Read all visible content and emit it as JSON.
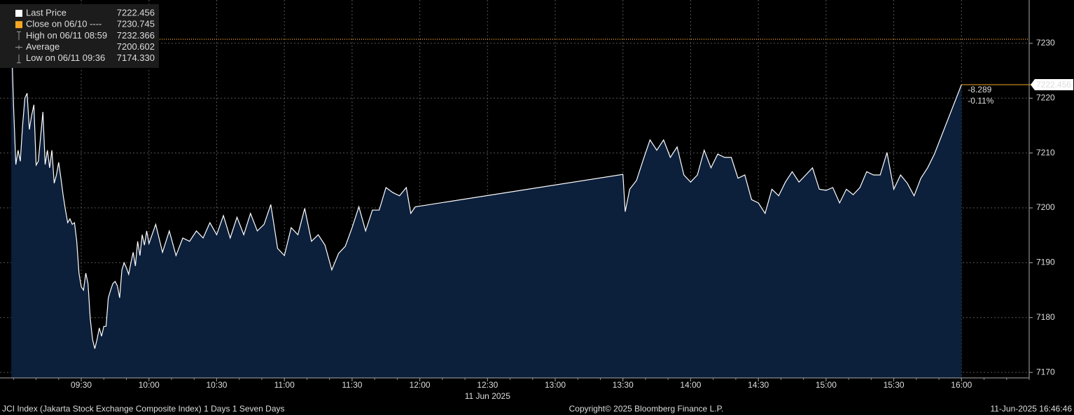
{
  "chart_data": {
    "type": "area",
    "xlim": [
      "08:54",
      "16:30"
    ],
    "xticks": [
      "09:30",
      "10:00",
      "10:30",
      "11:00",
      "11:30",
      "12:00",
      "12:30",
      "13:00",
      "13:30",
      "14:00",
      "14:30",
      "15:00",
      "15:30",
      "16:00"
    ],
    "date_label": "11 Jun 2025",
    "ylim": [
      7169,
      7237.9
    ],
    "yticks": [
      7170,
      7180,
      7190,
      7200,
      7210,
      7220,
      7230
    ],
    "grid": true,
    "x": [
      "08:59",
      "09:00",
      "09:01",
      "09:02",
      "09:03",
      "09:04",
      "09:05",
      "09:06",
      "09:07",
      "09:08",
      "09:09",
      "09:10",
      "09:11",
      "09:12",
      "09:13",
      "09:14",
      "09:15",
      "09:16",
      "09:17",
      "09:18",
      "09:19",
      "09:20",
      "09:21",
      "09:22",
      "09:23",
      "09:24",
      "09:25",
      "09:26",
      "09:27",
      "09:28",
      "09:29",
      "09:30",
      "09:31",
      "09:32",
      "09:33",
      "09:34",
      "09:35",
      "09:36",
      "09:37",
      "09:38",
      "09:39",
      "09:40",
      "09:41",
      "09:42",
      "09:43",
      "09:44",
      "09:45",
      "09:46",
      "09:47",
      "09:48",
      "09:49",
      "09:50",
      "09:51",
      "09:52",
      "09:53",
      "09:54",
      "09:55",
      "09:56",
      "09:57",
      "09:58",
      "09:59",
      "10:00",
      "10:03",
      "10:06",
      "10:09",
      "10:12",
      "10:15",
      "10:18",
      "10:21",
      "10:24",
      "10:27",
      "10:30",
      "10:33",
      "10:36",
      "10:39",
      "10:42",
      "10:45",
      "10:48",
      "10:51",
      "10:54",
      "10:57",
      "11:00",
      "11:03",
      "11:06",
      "11:09",
      "11:12",
      "11:15",
      "11:18",
      "11:21",
      "11:24",
      "11:27",
      "11:30",
      "11:33",
      "11:36",
      "11:39",
      "11:42",
      "11:45",
      "11:48",
      "11:51",
      "11:54",
      "11:56",
      "11:58",
      "13:30",
      "13:31",
      "13:33",
      "13:36",
      "13:39",
      "13:42",
      "13:45",
      "13:48",
      "13:51",
      "13:54",
      "13:57",
      "14:00",
      "14:03",
      "14:06",
      "14:09",
      "14:12",
      "14:15",
      "14:18",
      "14:21",
      "14:24",
      "14:27",
      "14:30",
      "14:33",
      "14:36",
      "14:39",
      "14:42",
      "14:45",
      "14:48",
      "14:51",
      "14:54",
      "14:57",
      "15:00",
      "15:03",
      "15:06",
      "15:09",
      "15:12",
      "15:15",
      "15:18",
      "15:21",
      "15:24",
      "15:27",
      "15:30",
      "15:33",
      "15:36",
      "15:39",
      "15:42",
      "15:45",
      "15:48",
      "16:00"
    ],
    "series": [
      {
        "name": "Last Price",
        "color": "#ffffff",
        "fill": "#0c1f3b",
        "values": [
          7232.366,
          7218.8,
          7207.9,
          7210.5,
          7208.5,
          7214.9,
          7220,
          7220.9,
          7214.3,
          7216.8,
          7218.8,
          7207.8,
          7208.5,
          7213,
          7217.5,
          7207.9,
          7210.5,
          7207.3,
          7210.5,
          7204.5,
          7206,
          7208.3,
          7205.4,
          7202.2,
          7199.6,
          7197.3,
          7198,
          7197,
          7197.3,
          7193.9,
          7188.1,
          7185.6,
          7185,
          7188.1,
          7186.2,
          7179.8,
          7176,
          7174.33,
          7176,
          7178.1,
          7176.6,
          7178.4,
          7178.4,
          7183.6,
          7185,
          7186.2,
          7186.6,
          7185.8,
          7183.6,
          7188.7,
          7190,
          7189.1,
          7187.9,
          7190,
          7191.9,
          7189.4,
          7193.9,
          7191.3,
          7195.1,
          7193.2,
          7195.8,
          7193.5,
          7197,
          7191.9,
          7195.8,
          7191.3,
          7194.5,
          7193.9,
          7195.8,
          7194.5,
          7197.3,
          7195.1,
          7198.6,
          7194.5,
          7198.3,
          7195.1,
          7199,
          7195.8,
          7197,
          7200.6,
          7192.6,
          7191.3,
          7196.4,
          7195.1,
          7199.9,
          7193.9,
          7195.1,
          7193.2,
          7188.7,
          7191.7,
          7193,
          7196.4,
          7200.2,
          7195.8,
          7199.6,
          7199.6,
          7203.7,
          7202.8,
          7202.2,
          7203.7,
          7199,
          7200.2,
          7206.1,
          7199.3,
          7203.4,
          7205,
          7208.8,
          7212.4,
          7210.5,
          7212.4,
          7209.2,
          7211.1,
          7206,
          7204.7,
          7206,
          7210.5,
          7207.3,
          7209.8,
          7209.2,
          7209.2,
          7205.4,
          7206,
          7201.5,
          7200.9,
          7199,
          7203.4,
          7202.2,
          7204.7,
          7206.6,
          7204.7,
          7206,
          7207.3,
          7203.4,
          7203.2,
          7203.7,
          7200.9,
          7203.4,
          7202.4,
          7203.7,
          7206.6,
          7206,
          7206,
          7210.1,
          7203.4,
          7206,
          7204.5,
          7202.2,
          7205.4,
          7207.3,
          7209.8,
          7222.456
        ]
      }
    ],
    "legend": [
      {
        "label": "Last Price",
        "value": 7222.456,
        "color": "#ffffff"
      },
      {
        "label": "Close on 06/10 ----",
        "value": 7230.745,
        "color": "#f5a623"
      },
      {
        "label": "High on 06/11 08:59",
        "value": 7232.366,
        "color": "#999999"
      },
      {
        "label": "Average",
        "value": 7200.602,
        "color": "#999999"
      },
      {
        "label": "Low on 06/11 09:36",
        "value": 7174.33,
        "value_label": "7174.330",
        "color": "#999999"
      }
    ],
    "last_price": 7222.456,
    "change": -8.289,
    "change_pct": {
      "value": -0.11,
      "label": "-0.11%"
    },
    "footer": {
      "left": "JCI Index (Jakarta Stock Exchange Composite Index) 1 Days 1 Seven Days",
      "center": "Copyright© 2025 Bloomberg Finance L.P.",
      "right": "11-Jun-2025 16:46:46"
    }
  }
}
